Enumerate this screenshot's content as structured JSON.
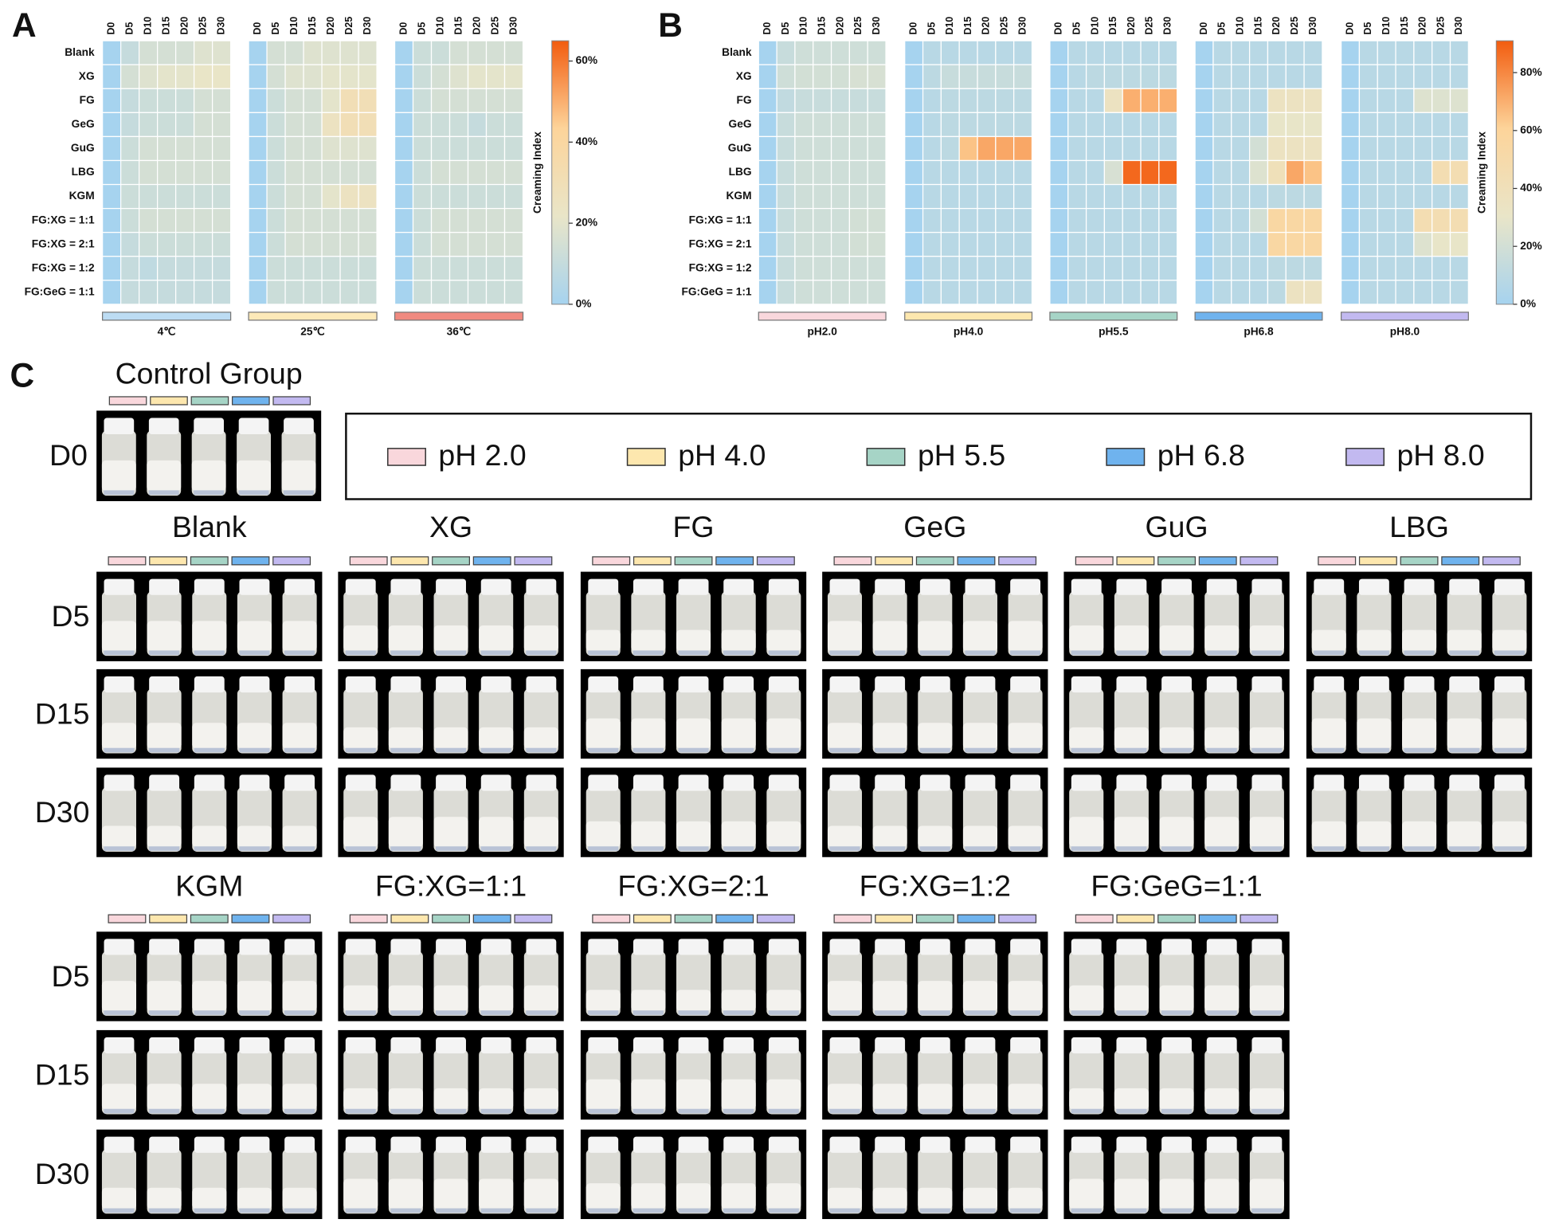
{
  "chart_data": [
    {
      "type": "heatmap",
      "label": "A",
      "rows": [
        "Blank",
        "XG",
        "FG",
        "GeG",
        "GuG",
        "LBG",
        "KGM",
        "FG:XG = 1:1",
        "FG:XG = 2:1",
        "FG:XG = 1:2",
        "FG:GeG = 1:1"
      ],
      "columns": [
        "D0",
        "D5",
        "D10",
        "D15",
        "D20",
        "D25",
        "D30"
      ],
      "colorscale": [
        "#a6d3ef",
        "#e9e5c8",
        "#fdd49a",
        "#f25c0f"
      ],
      "colorbar_title": "Creaming Index",
      "zlim": [
        0,
        65
      ],
      "zticks": [
        {
          "value": 0,
          "label": "0%"
        },
        {
          "value": 20,
          "label": "20%"
        },
        {
          "value": 40,
          "label": "40%"
        },
        {
          "value": 60,
          "label": "60%"
        }
      ],
      "panels": [
        {
          "title": "4℃",
          "color": "#bcdcf3",
          "values": [
            [
              0,
              10,
              15,
              15,
              15,
              18,
              18
            ],
            [
              0,
              15,
              18,
              20,
              20,
              22,
              22
            ],
            [
              0,
              10,
              12,
              12,
              12,
              15,
              15
            ],
            [
              0,
              10,
              12,
              12,
              12,
              15,
              15
            ],
            [
              0,
              12,
              15,
              15,
              15,
              15,
              15
            ],
            [
              0,
              12,
              15,
              15,
              15,
              15,
              15
            ],
            [
              0,
              12,
              12,
              12,
              12,
              12,
              12
            ],
            [
              0,
              12,
              15,
              15,
              15,
              15,
              15
            ],
            [
              0,
              10,
              12,
              12,
              12,
              12,
              12
            ],
            [
              0,
              10,
              8,
              10,
              10,
              10,
              10
            ],
            [
              0,
              10,
              10,
              10,
              10,
              10,
              10
            ]
          ]
        },
        {
          "title": "25℃",
          "color": "#fde9b8",
          "values": [
            [
              0,
              15,
              15,
              18,
              18,
              18,
              18
            ],
            [
              0,
              15,
              18,
              18,
              20,
              20,
              20
            ],
            [
              0,
              12,
              15,
              15,
              20,
              30,
              30
            ],
            [
              0,
              12,
              15,
              15,
              25,
              30,
              30
            ],
            [
              0,
              12,
              15,
              15,
              18,
              18,
              18
            ],
            [
              0,
              12,
              15,
              15,
              15,
              15,
              15
            ],
            [
              0,
              12,
              15,
              15,
              20,
              25,
              25
            ],
            [
              0,
              12,
              15,
              15,
              15,
              15,
              15
            ],
            [
              0,
              12,
              15,
              15,
              15,
              15,
              15
            ],
            [
              0,
              12,
              12,
              12,
              12,
              12,
              12
            ],
            [
              0,
              12,
              12,
              12,
              12,
              12,
              12
            ]
          ]
        },
        {
          "title": "36℃",
          "color": "#f08a80",
          "values": [
            [
              0,
              12,
              12,
              15,
              15,
              15,
              15
            ],
            [
              0,
              12,
              15,
              18,
              20,
              20,
              20
            ],
            [
              0,
              12,
              15,
              15,
              15,
              15,
              15
            ],
            [
              0,
              12,
              12,
              12,
              10,
              12,
              12
            ],
            [
              0,
              12,
              12,
              12,
              12,
              12,
              12
            ],
            [
              0,
              12,
              15,
              15,
              15,
              15,
              15
            ],
            [
              0,
              12,
              12,
              12,
              12,
              12,
              12
            ],
            [
              0,
              12,
              15,
              15,
              15,
              15,
              15
            ],
            [
              0,
              12,
              15,
              15,
              15,
              15,
              15
            ],
            [
              0,
              12,
              12,
              12,
              12,
              12,
              12
            ],
            [
              0,
              12,
              12,
              12,
              12,
              12,
              12
            ]
          ]
        }
      ]
    },
    {
      "type": "heatmap",
      "label": "B",
      "rows": [
        "Blank",
        "XG",
        "FG",
        "GeG",
        "GuG",
        "LBG",
        "KGM",
        "FG:XG = 1:1",
        "FG:XG = 2:1",
        "FG:XG = 1:2",
        "FG:GeG = 1:1"
      ],
      "columns": [
        "D0",
        "D5",
        "D10",
        "D15",
        "D20",
        "D25",
        "D30"
      ],
      "colorscale": [
        "#a6d3ef",
        "#e9e5c8",
        "#fdd49a",
        "#f25c0f"
      ],
      "colorbar_title": "Creaming Index",
      "zlim": [
        0,
        91
      ],
      "zticks": [
        {
          "value": 0,
          "label": "0%"
        },
        {
          "value": 20,
          "label": "20%"
        },
        {
          "value": 40,
          "label": "40%"
        },
        {
          "value": 60,
          "label": "60%"
        },
        {
          "value": 80,
          "label": "80%"
        }
      ],
      "panels": [
        {
          "title": "pH2.0",
          "color": "#f9d7dc",
          "values": [
            [
              0,
              15,
              18,
              18,
              18,
              18,
              18
            ],
            [
              0,
              18,
              20,
              20,
              20,
              22,
              22
            ],
            [
              0,
              12,
              15,
              15,
              15,
              15,
              15
            ],
            [
              0,
              15,
              18,
              18,
              18,
              18,
              18
            ],
            [
              0,
              15,
              18,
              18,
              18,
              18,
              18
            ],
            [
              0,
              15,
              18,
              18,
              18,
              18,
              18
            ],
            [
              0,
              15,
              18,
              18,
              18,
              18,
              18
            ],
            [
              0,
              15,
              18,
              18,
              18,
              20,
              20
            ],
            [
              0,
              15,
              18,
              18,
              18,
              20,
              20
            ],
            [
              0,
              15,
              18,
              18,
              18,
              18,
              18
            ],
            [
              0,
              15,
              18,
              18,
              18,
              18,
              18
            ]
          ]
        },
        {
          "title": "pH4.0",
          "color": "#fde7ae",
          "values": [
            [
              0,
              8,
              8,
              8,
              8,
              8,
              8
            ],
            [
              0,
              10,
              15,
              15,
              15,
              15,
              15
            ],
            [
              0,
              8,
              10,
              10,
              10,
              10,
              10
            ],
            [
              0,
              8,
              10,
              10,
              10,
              10,
              10
            ],
            [
              0,
              8,
              10,
              65,
              72,
              72,
              72
            ],
            [
              0,
              8,
              8,
              8,
              8,
              8,
              8
            ],
            [
              0,
              8,
              8,
              8,
              8,
              8,
              8
            ],
            [
              0,
              8,
              8,
              8,
              8,
              8,
              8
            ],
            [
              0,
              8,
              8,
              8,
              8,
              8,
              8
            ],
            [
              0,
              8,
              8,
              8,
              8,
              8,
              8
            ],
            [
              0,
              8,
              8,
              8,
              8,
              8,
              8
            ]
          ]
        },
        {
          "title": "pH5.5",
          "color": "#a6d4c6",
          "values": [
            [
              0,
              8,
              8,
              8,
              8,
              8,
              8
            ],
            [
              0,
              8,
              10,
              10,
              10,
              10,
              10
            ],
            [
              0,
              8,
              8,
              35,
              70,
              70,
              70
            ],
            [
              0,
              8,
              8,
              8,
              8,
              8,
              8
            ],
            [
              0,
              8,
              8,
              8,
              8,
              8,
              8
            ],
            [
              0,
              8,
              8,
              22,
              88,
              88,
              88
            ],
            [
              0,
              8,
              8,
              8,
              8,
              8,
              8
            ],
            [
              0,
              8,
              8,
              8,
              8,
              8,
              8
            ],
            [
              0,
              8,
              8,
              8,
              8,
              8,
              8
            ],
            [
              0,
              8,
              8,
              8,
              8,
              8,
              8
            ],
            [
              0,
              8,
              8,
              8,
              8,
              8,
              8
            ]
          ]
        },
        {
          "title": "pH6.8",
          "color": "#6fb3ee",
          "values": [
            [
              0,
              8,
              8,
              8,
              8,
              8,
              8
            ],
            [
              0,
              8,
              8,
              8,
              8,
              8,
              8
            ],
            [
              0,
              8,
              8,
              8,
              35,
              35,
              35
            ],
            [
              0,
              8,
              8,
              8,
              30,
              30,
              30
            ],
            [
              0,
              8,
              8,
              20,
              35,
              35,
              35
            ],
            [
              0,
              8,
              8,
              25,
              40,
              72,
              65
            ],
            [
              0,
              8,
              8,
              8,
              10,
              10,
              10
            ],
            [
              0,
              8,
              8,
              20,
              55,
              55,
              55
            ],
            [
              0,
              8,
              8,
              8,
              55,
              55,
              55
            ],
            [
              0,
              8,
              8,
              8,
              10,
              10,
              10
            ],
            [
              0,
              8,
              8,
              8,
              10,
              35,
              35
            ]
          ]
        },
        {
          "title": "pH8.0",
          "color": "#c2b9f0",
          "values": [
            [
              0,
              8,
              8,
              8,
              8,
              8,
              8
            ],
            [
              0,
              8,
              8,
              8,
              8,
              8,
              8
            ],
            [
              0,
              8,
              8,
              8,
              25,
              25,
              25
            ],
            [
              0,
              8,
              8,
              8,
              8,
              8,
              8
            ],
            [
              0,
              8,
              8,
              8,
              8,
              8,
              8
            ],
            [
              0,
              8,
              8,
              8,
              8,
              45,
              45
            ],
            [
              0,
              8,
              8,
              8,
              8,
              8,
              8
            ],
            [
              0,
              8,
              8,
              8,
              45,
              45,
              45
            ],
            [
              0,
              8,
              8,
              8,
              25,
              30,
              30
            ],
            [
              0,
              8,
              8,
              8,
              8,
              8,
              8
            ],
            [
              0,
              8,
              8,
              8,
              8,
              8,
              8
            ]
          ]
        }
      ]
    }
  ],
  "panel_c": {
    "label": "C",
    "control": {
      "title": "Control Group",
      "day": "D0"
    },
    "legend": [
      {
        "name": "pH 2.0",
        "color": "#f9d7dc"
      },
      {
        "name": "pH 4.0",
        "color": "#fde7ae"
      },
      {
        "name": "pH 5.5",
        "color": "#a6d4c6"
      },
      {
        "name": "pH 6.8",
        "color": "#6fb3ee"
      },
      {
        "name": "pH 8.0",
        "color": "#c2b9f0"
      }
    ],
    "days": [
      "D5",
      "D15",
      "D30"
    ],
    "groups": [
      "Blank",
      "XG",
      "FG",
      "GeG",
      "GuG",
      "LBG",
      "KGM",
      "FG:XG=1:1",
      "FG:XG=2:1",
      "FG:XG=1:2",
      "FG:GeG=1:1"
    ]
  }
}
